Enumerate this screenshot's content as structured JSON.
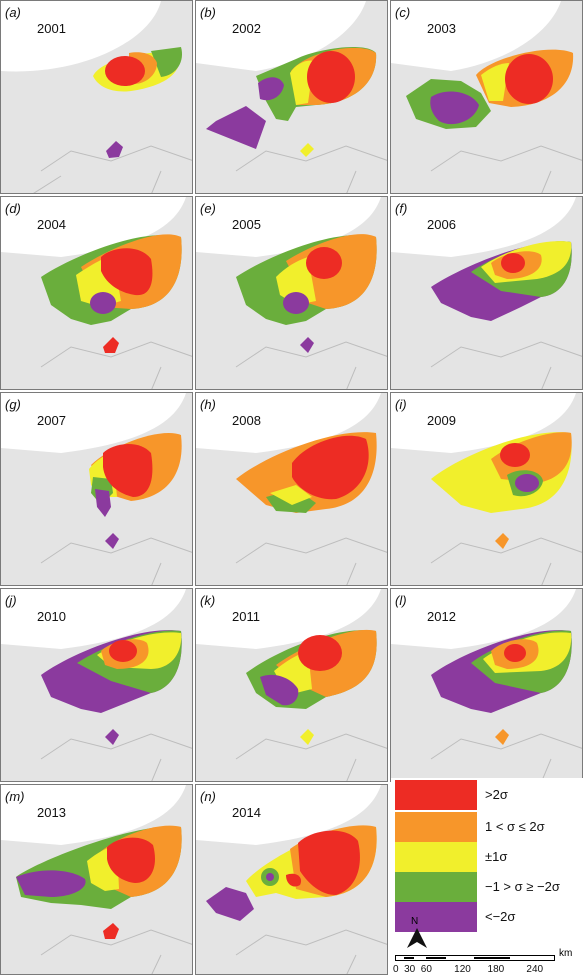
{
  "panels": [
    {
      "label": "(a)",
      "year": "2001"
    },
    {
      "label": "(b)",
      "year": "2002"
    },
    {
      "label": "(c)",
      "year": "2003"
    },
    {
      "label": "(d)",
      "year": "2004"
    },
    {
      "label": "(e)",
      "year": "2005"
    },
    {
      "label": "(f)",
      "year": "2006"
    },
    {
      "label": "(g)",
      "year": "2007"
    },
    {
      "label": "(h)",
      "year": "2008"
    },
    {
      "label": "(i)",
      "year": "2009"
    },
    {
      "label": "(j)",
      "year": "2010"
    },
    {
      "label": "(k)",
      "year": "2011"
    },
    {
      "label": "(l)",
      "year": "2012"
    },
    {
      "label": "(m)",
      "year": "2013"
    },
    {
      "label": "(n)",
      "year": "2014"
    }
  ],
  "legend": {
    "items": [
      {
        "label": ">2σ",
        "color": "#ed2c24"
      },
      {
        "label": "1 < σ ≤ 2σ",
        "color": "#f7962a"
      },
      {
        "label": "±1σ",
        "color": "#f1ef2c"
      },
      {
        "label": "−1 > σ ≥ −2σ",
        "color": "#6aae3c"
      },
      {
        "label": "<−2σ",
        "color": "#8b3a9e"
      }
    ]
  },
  "north_label": "N",
  "scale": {
    "unit": "km",
    "ticks": "0  30  60        120      180        240"
  }
}
